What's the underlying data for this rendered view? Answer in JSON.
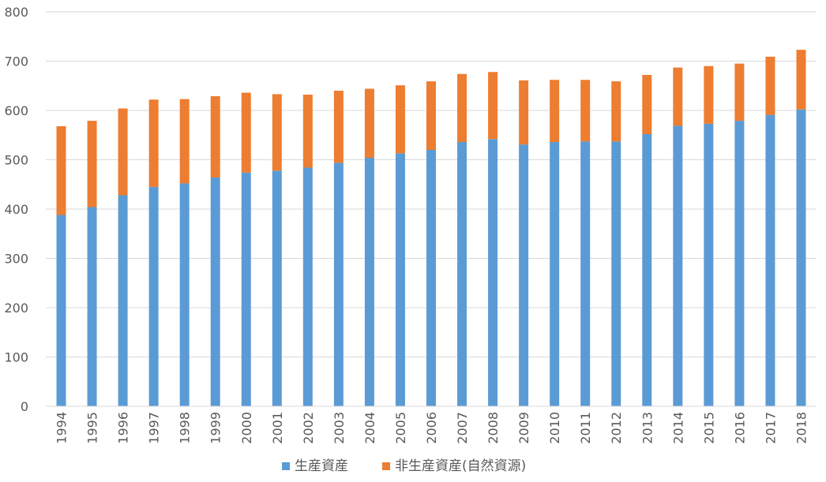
{
  "chart_data": {
    "type": "bar",
    "stacked": true,
    "title": "",
    "xlabel": "",
    "ylabel": "",
    "ylim": [
      0,
      800
    ],
    "yticks": [
      0,
      100,
      200,
      300,
      400,
      500,
      600,
      700,
      800
    ],
    "grid": true,
    "legend_position": "bottom",
    "categories": [
      "1994",
      "1995",
      "1996",
      "1997",
      "1998",
      "1999",
      "2000",
      "2001",
      "2002",
      "2003",
      "2004",
      "2005",
      "2006",
      "2007",
      "2008",
      "2009",
      "2010",
      "2011",
      "2012",
      "2013",
      "2014",
      "2015",
      "2016",
      "2017",
      "2018"
    ],
    "series": [
      {
        "name": "生産資産",
        "color": "#5B9BD5",
        "values": [
          388,
          404,
          428,
          445,
          452,
          464,
          474,
          478,
          484,
          494,
          504,
          513,
          520,
          536,
          542,
          531,
          536,
          537,
          537,
          552,
          569,
          573,
          579,
          591,
          602
        ]
      },
      {
        "name": "非生産資産(自然資源)",
        "color": "#ED7D31",
        "values": [
          180,
          175,
          176,
          177,
          171,
          165,
          162,
          155,
          148,
          146,
          140,
          138,
          139,
          138,
          136,
          130,
          126,
          125,
          122,
          120,
          118,
          117,
          116,
          118,
          121
        ]
      }
    ]
  }
}
